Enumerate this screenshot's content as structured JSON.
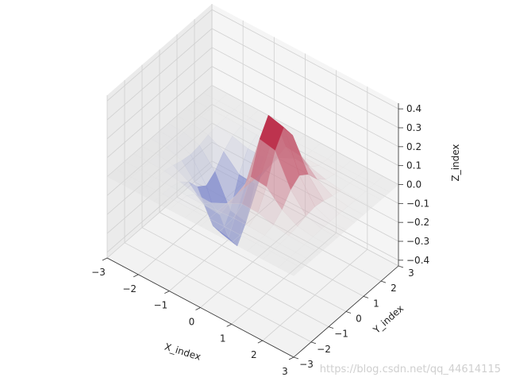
{
  "chart_data": {
    "type": "surface3d",
    "function": "z = x*exp(-x^2 - y^2)",
    "x_range": [
      -3,
      3
    ],
    "y_range": [
      -3,
      3
    ],
    "z_range": [
      -0.43,
      0.43
    ],
    "grid_points": 13,
    "xlabel": "X_index",
    "ylabel": "Y_index",
    "zlabel": "Z_index",
    "xticks": [
      "−3",
      "−2",
      "−1",
      "0",
      "1",
      "2",
      "3"
    ],
    "yticks": [
      "−3",
      "−2",
      "−1",
      "0",
      "1",
      "2",
      "3"
    ],
    "zticks": [
      "0.4",
      "0.3",
      "0.2",
      "0.1",
      "0.0",
      "−0.1",
      "−0.2",
      "−0.3",
      "−0.4"
    ],
    "colormap": "coolwarm",
    "colors": {
      "low": "#3b4cc0",
      "mid": "#dddddd",
      "high": "#b40426",
      "pane": "#f2f2f2",
      "grid": "#d0d0d0"
    },
    "grid": true
  },
  "watermark": "https://blog.csdn.net/qq_44614115"
}
